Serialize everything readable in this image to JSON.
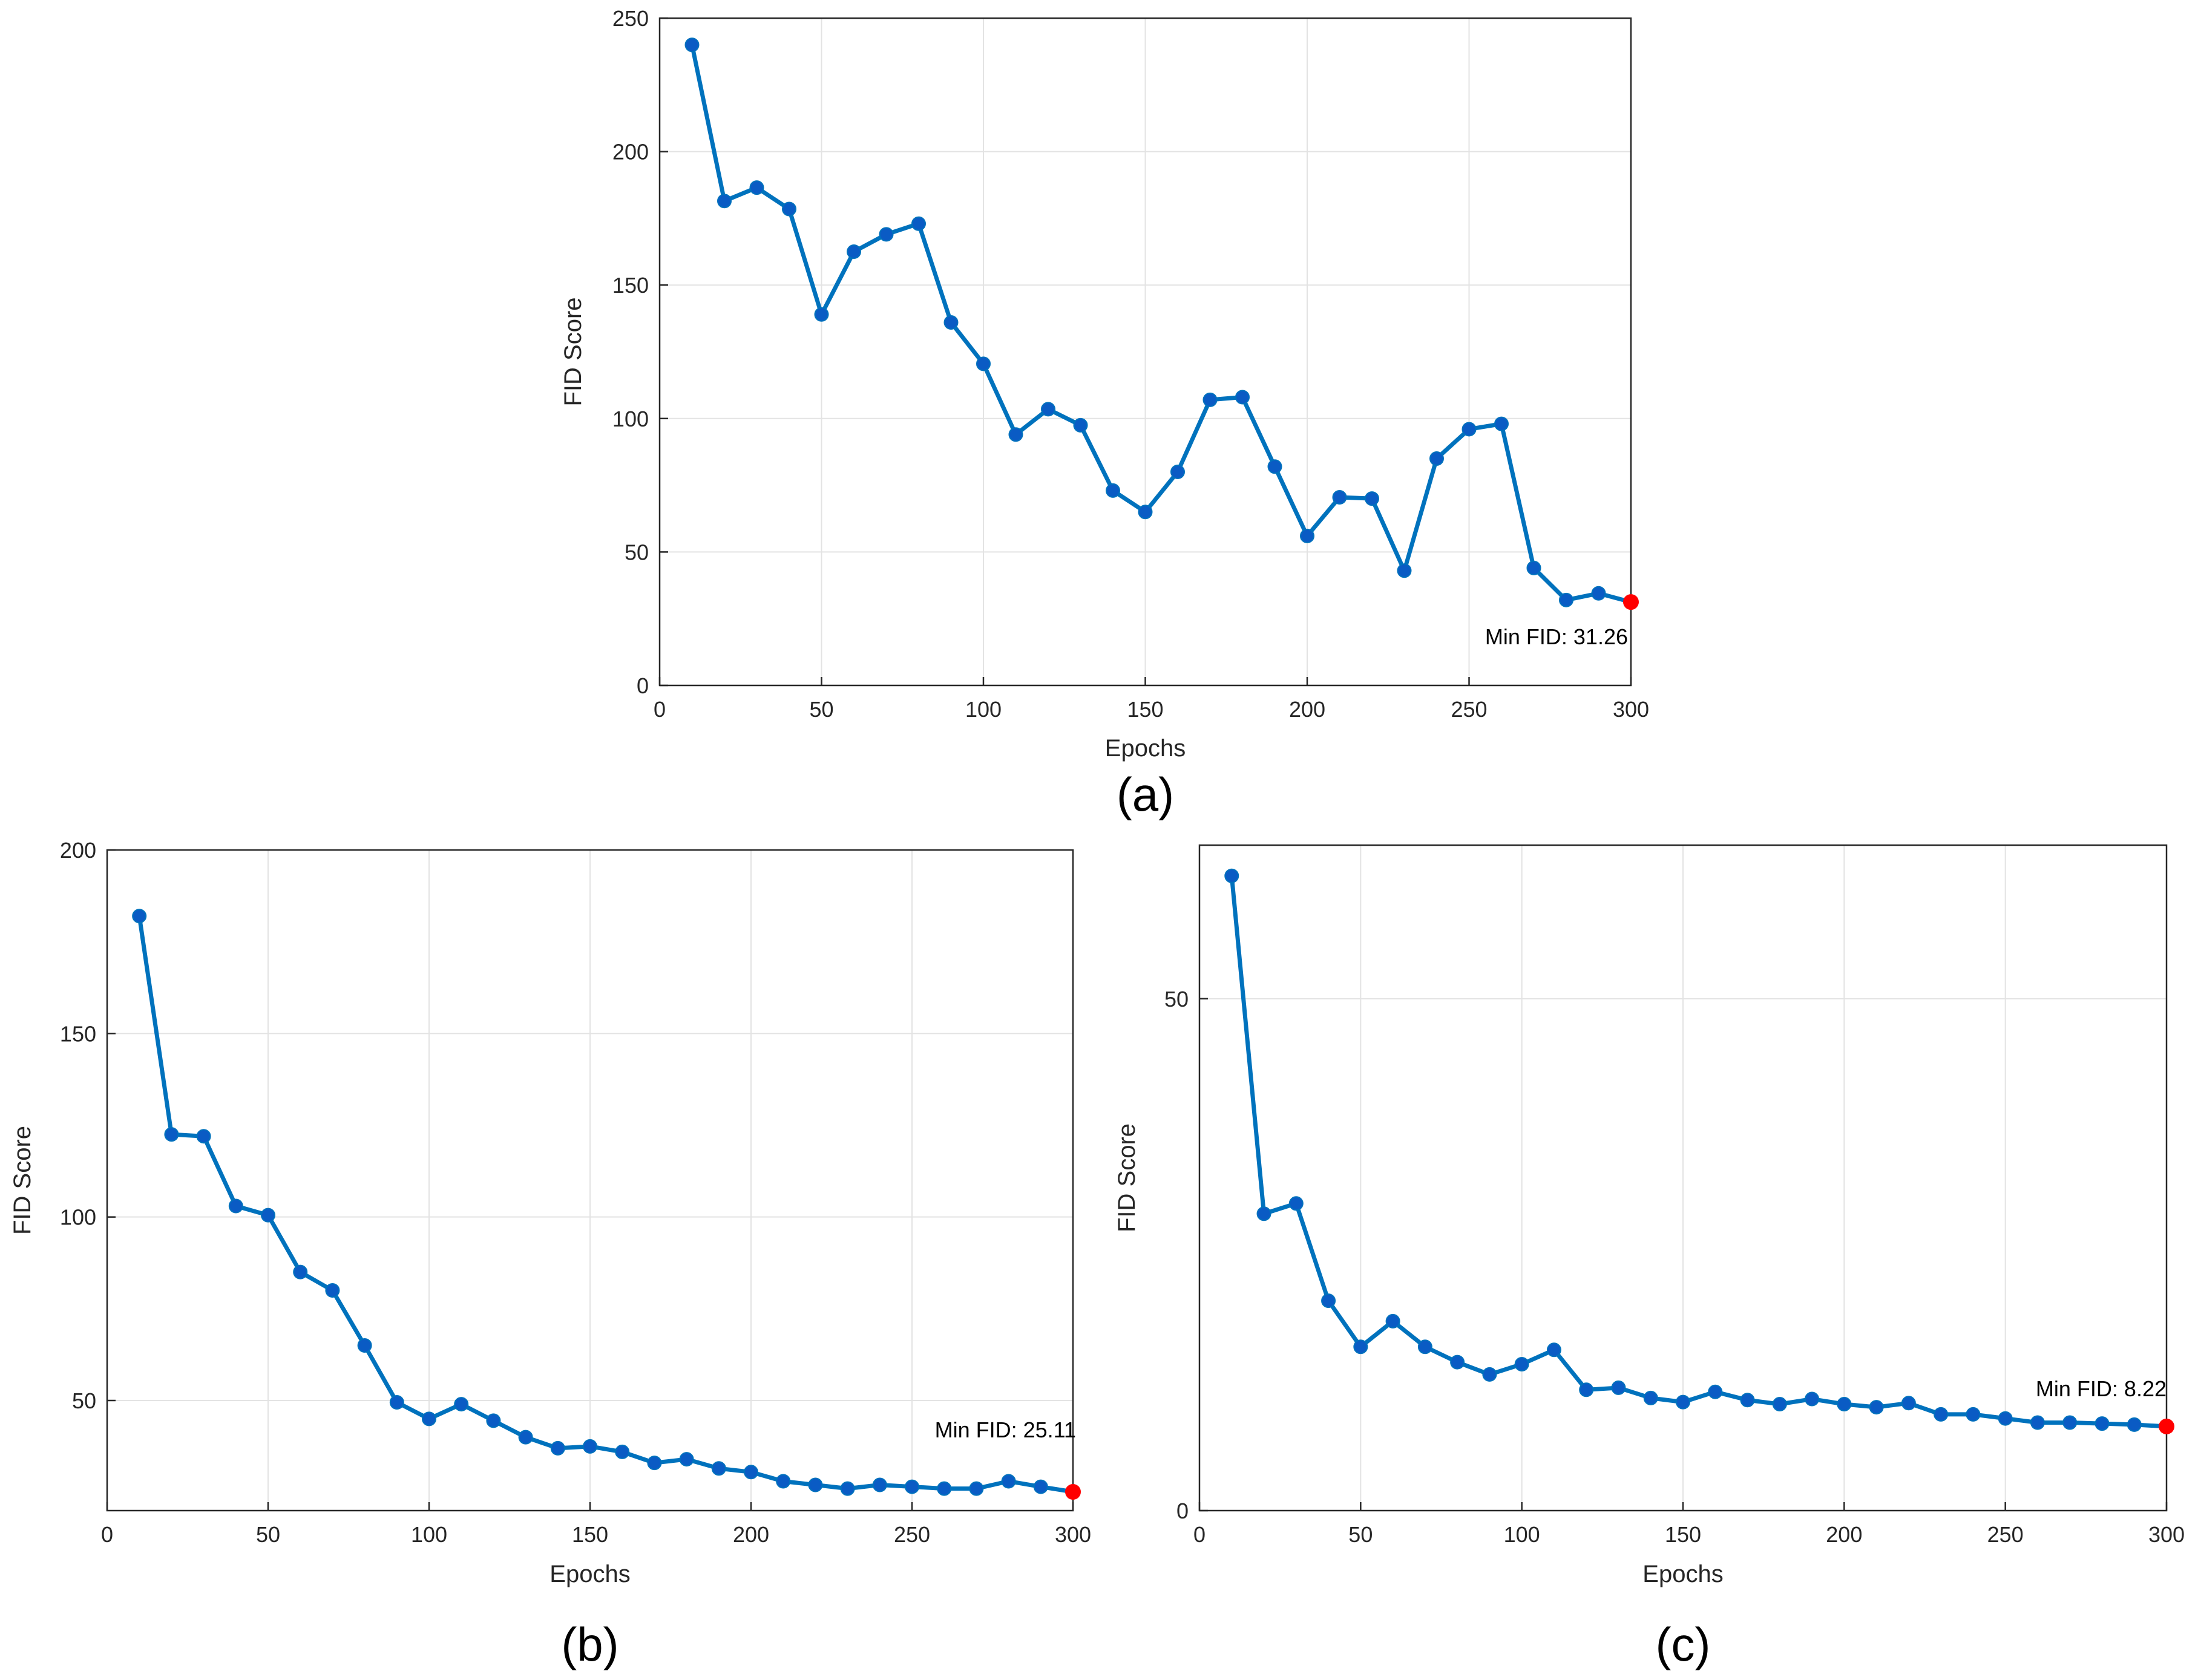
{
  "colors": {
    "line": "#0072BD",
    "marker": "#0A5BC4",
    "min_marker": "#FF0000",
    "grid": "#E3E3E3",
    "axis": "#262626"
  },
  "chart_data": [
    {
      "id": "a",
      "type": "line",
      "caption": "(a)",
      "xlabel": "Epochs",
      "ylabel": "FID Score",
      "xlim": [
        0,
        300
      ],
      "ylim": [
        0,
        250
      ],
      "xticks": [
        0,
        50,
        100,
        150,
        200,
        250,
        300
      ],
      "yticks": [
        0,
        50,
        100,
        150,
        200,
        250
      ],
      "grid": true,
      "series": [
        {
          "name": "FID",
          "x": [
            10,
            20,
            30,
            40,
            50,
            60,
            70,
            80,
            90,
            100,
            110,
            120,
            130,
            140,
            150,
            160,
            170,
            180,
            190,
            200,
            210,
            220,
            230,
            240,
            250,
            260,
            270,
            280,
            290,
            300
          ],
          "values": [
            240,
            181.5,
            186.5,
            178.5,
            139,
            162.5,
            169,
            173,
            136,
            120.5,
            94,
            103.5,
            97.5,
            73,
            65,
            80,
            107,
            108,
            82,
            56,
            70.5,
            70,
            43,
            85,
            96,
            98,
            44,
            32,
            34.5,
            31.26
          ]
        }
      ],
      "min_point": {
        "x": 300,
        "y": 31.26
      },
      "annotation": "Min FID: 31.26"
    },
    {
      "id": "b",
      "type": "line",
      "caption": "(b)",
      "xlabel": "Epochs",
      "ylabel": "FID Score",
      "xlim": [
        0,
        300
      ],
      "ylim": [
        20,
        200
      ],
      "xticks": [
        0,
        50,
        100,
        150,
        200,
        250,
        300
      ],
      "yticks": [
        50,
        100,
        150,
        200
      ],
      "grid": true,
      "series": [
        {
          "name": "FID",
          "x": [
            10,
            20,
            30,
            40,
            50,
            60,
            70,
            80,
            90,
            100,
            110,
            120,
            130,
            140,
            150,
            160,
            170,
            180,
            190,
            200,
            210,
            220,
            230,
            240,
            250,
            260,
            270,
            280,
            290,
            300
          ],
          "values": [
            182,
            122.5,
            122,
            103,
            100.5,
            85,
            80,
            65,
            49.5,
            45,
            49,
            44.5,
            40,
            37,
            37.5,
            36,
            33,
            34,
            31.5,
            30.5,
            28,
            27,
            26,
            27,
            26.5,
            26,
            26,
            28,
            26.5,
            25.11
          ]
        }
      ],
      "min_point": {
        "x": 300,
        "y": 25.11
      },
      "annotation": "Min FID: 25.11"
    },
    {
      "id": "c",
      "type": "line",
      "caption": "(c)",
      "xlabel": "Epochs",
      "ylabel": "FID Score",
      "xlim": [
        0,
        300
      ],
      "ylim": [
        0,
        65
      ],
      "xticks": [
        0,
        50,
        100,
        150,
        200,
        250,
        300
      ],
      "yticks": [
        0,
        50
      ],
      "grid": true,
      "series": [
        {
          "name": "FID",
          "x": [
            10,
            20,
            30,
            40,
            50,
            60,
            70,
            80,
            90,
            100,
            110,
            120,
            130,
            140,
            150,
            160,
            170,
            180,
            190,
            200,
            210,
            220,
            230,
            240,
            250,
            260,
            270,
            280,
            290,
            300
          ],
          "values": [
            62,
            29,
            30,
            20.5,
            16,
            18.5,
            16,
            14.5,
            13.3,
            14.3,
            15.7,
            11.8,
            12,
            11,
            10.6,
            11.6,
            10.8,
            10.4,
            10.9,
            10.4,
            10.1,
            10.5,
            9.4,
            9.4,
            9.0,
            8.6,
            8.6,
            8.5,
            8.4,
            8.22
          ]
        }
      ],
      "min_point": {
        "x": 300,
        "y": 8.22
      },
      "annotation": "Min FID: 8.22"
    }
  ]
}
